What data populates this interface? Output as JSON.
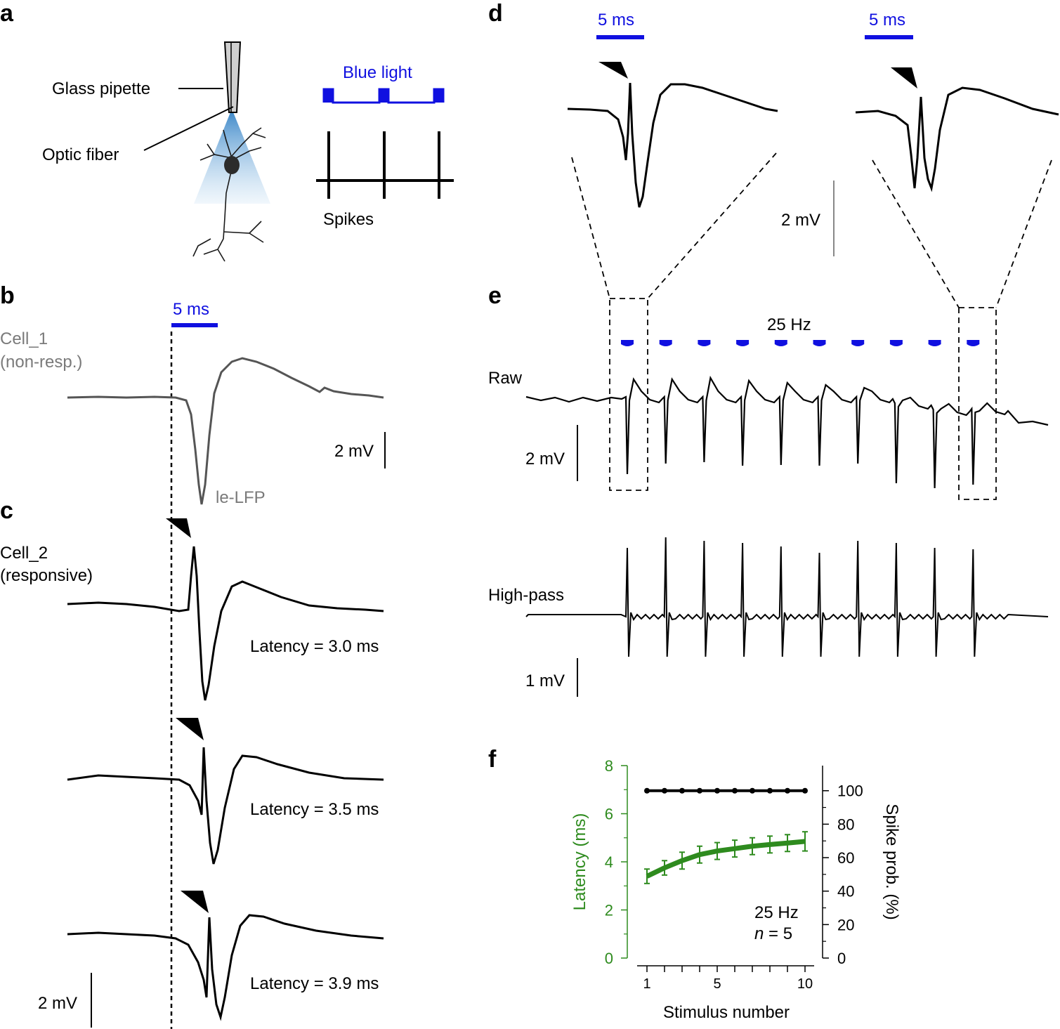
{
  "panels": {
    "a": "a",
    "b": "b",
    "c": "c",
    "d": "d",
    "e": "e",
    "f": "f"
  },
  "panel_a": {
    "glass_pipette": "Glass pipette",
    "optic_fiber": "Optic fiber",
    "blue_light": "Blue light",
    "spikes": "Spikes",
    "colors": {
      "light": "#1010e0",
      "cone": "#5b9bd5"
    }
  },
  "panel_b": {
    "scale_time": "5 ms",
    "cell_name": "Cell_1",
    "cell_note": "(non-resp.)",
    "scale_voltage": "2 mV",
    "trace_label": "le-LFP",
    "trace_color": "#555555"
  },
  "panel_c": {
    "cell_name": "Cell_2",
    "cell_note": "(responsive)",
    "latencies": [
      "Latency = 3.0 ms",
      "Latency = 3.5 ms",
      "Latency = 3.9 ms"
    ],
    "scale_voltage": "2 mV"
  },
  "panel_d": {
    "scale_time_left": "5 ms",
    "scale_time_right": "5 ms",
    "scale_voltage": "2 mV"
  },
  "panel_e": {
    "frequency": "25 Hz",
    "raw_label": "Raw",
    "raw_scale": "2 mV",
    "highpass_label": "High-pass",
    "highpass_scale": "1 mV",
    "pulse_count": 10
  },
  "chart_data": {
    "type": "line",
    "x": [
      1,
      2,
      3,
      4,
      5,
      6,
      7,
      8,
      9,
      10
    ],
    "xlabel": "Stimulus number",
    "xticks": [
      1,
      5,
      10
    ],
    "series": [
      {
        "name": "Latency (ms)",
        "axis": "left",
        "color": "#2e8b1e",
        "values": [
          3.4,
          3.75,
          4.05,
          4.3,
          4.45,
          4.55,
          4.65,
          4.72,
          4.78,
          4.85
        ],
        "errors": [
          0.3,
          0.3,
          0.35,
          0.35,
          0.35,
          0.35,
          0.35,
          0.35,
          0.35,
          0.4
        ]
      },
      {
        "name": "Spike prob. (%)",
        "axis": "right",
        "color": "#000000",
        "values": [
          100,
          100,
          100,
          100,
          100,
          100,
          100,
          100,
          100,
          100
        ]
      }
    ],
    "ylabel_left": "Latency (ms)",
    "ylim_left": [
      0,
      8
    ],
    "yticks_left": [
      0,
      2,
      4,
      6,
      8
    ],
    "ylabel_right": "Spike prob. (%)",
    "ylim_right": [
      0,
      115
    ],
    "yticks_right": [
      0,
      20,
      40,
      60,
      80,
      100
    ],
    "annotation": "25 Hz",
    "n_label": "n",
    "n_value": " = 5",
    "grid": false
  }
}
